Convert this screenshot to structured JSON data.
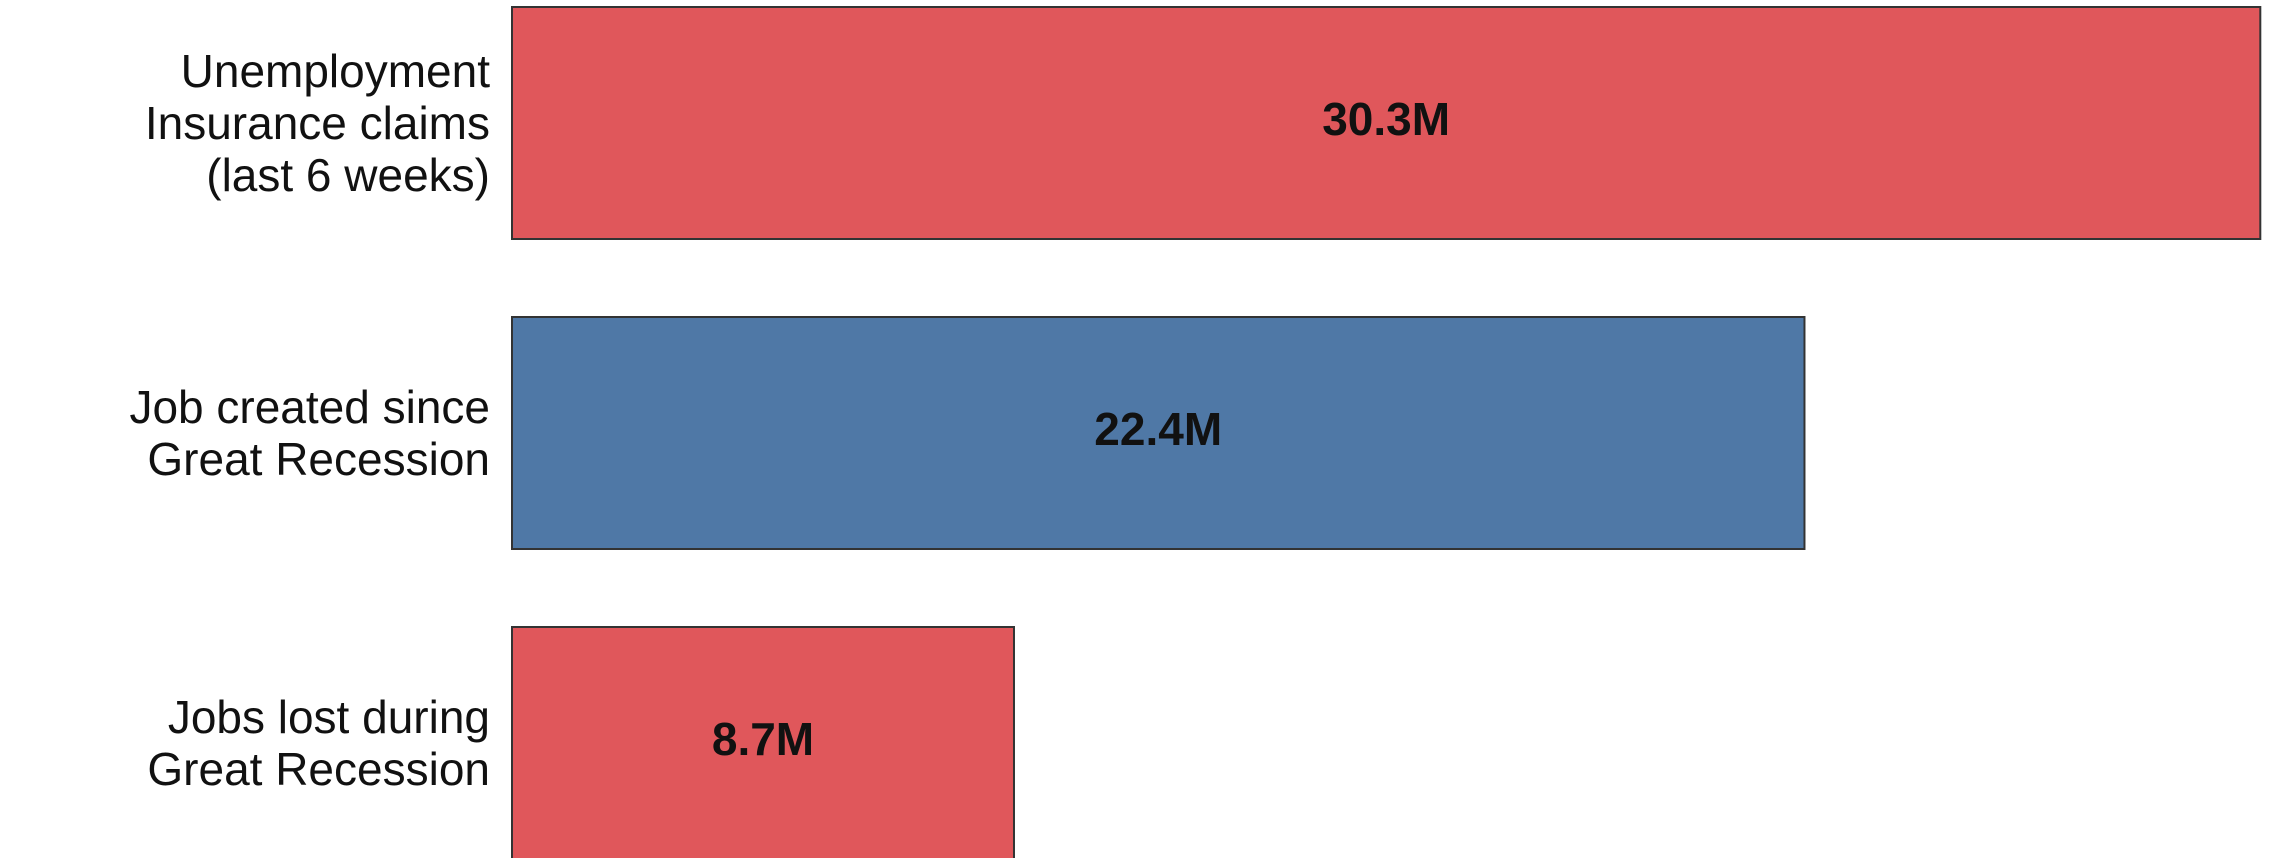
{
  "chart_data": {
    "type": "bar",
    "orientation": "horizontal",
    "categories": [
      "Unemployment\nInsurance claims\n(last 6 weeks)",
      "Job created since\nGreat Recession",
      "Jobs lost during\nGreat Recession"
    ],
    "values": [
      30.3,
      22.4,
      8.7
    ],
    "value_labels": [
      "30.3M",
      "22.4M",
      "8.7M"
    ],
    "colors": [
      "#e0575b",
      "#4f78a6",
      "#e0575b"
    ]
  }
}
